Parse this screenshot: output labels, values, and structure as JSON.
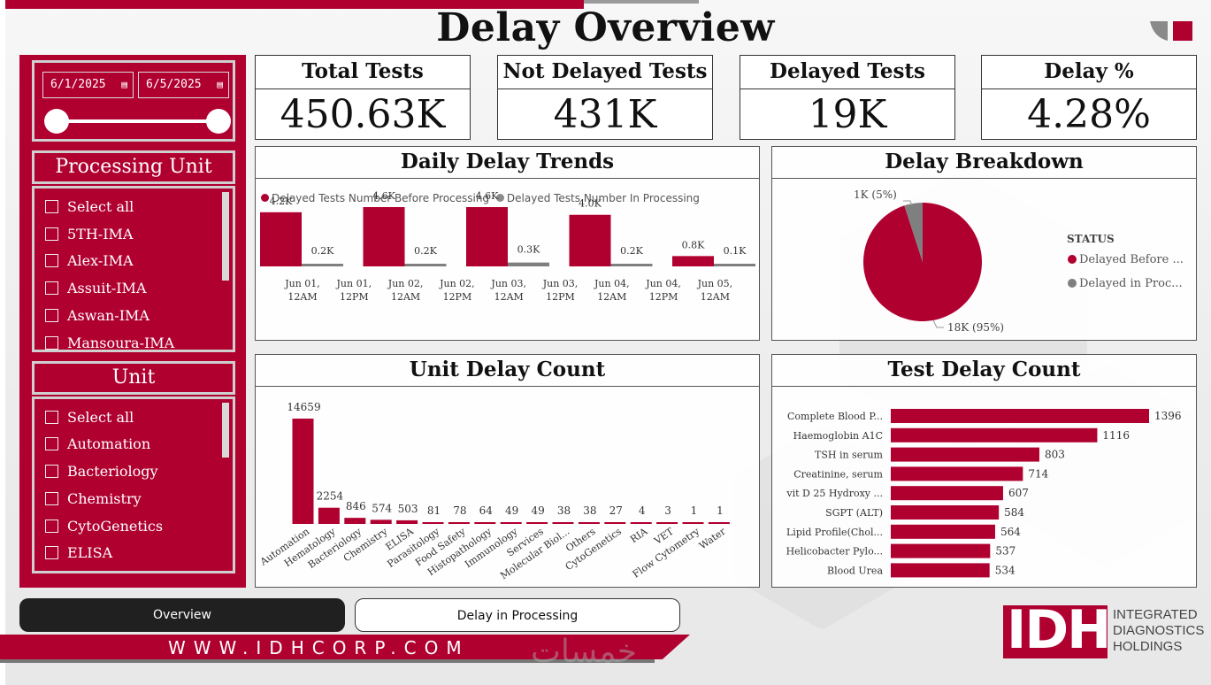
{
  "page": {
    "title": "Delay Overview"
  },
  "colors": {
    "brand": "#b00030",
    "gray": "#7f7f7f",
    "dark": "#202020"
  },
  "filters": {
    "date_start": "6/1/2025",
    "date_end": "6/5/2025",
    "processing_unit": {
      "title": "Processing Unit",
      "items": [
        "Select all",
        "5TH-IMA",
        "Alex-IMA",
        "Assuit-IMA",
        "Aswan-IMA",
        "Mansoura-IMA"
      ]
    },
    "unit": {
      "title": "Unit",
      "items": [
        "Select all",
        "Automation",
        "Bacteriology",
        "Chemistry",
        "CytoGenetics",
        "ELISA"
      ]
    }
  },
  "kpis": [
    {
      "label": "Total Tests",
      "value": "450.63K"
    },
    {
      "label": "Not Delayed Tests",
      "value": "431K"
    },
    {
      "label": "Delayed Tests",
      "value": "19K"
    },
    {
      "label": "Delay %",
      "value": "4.28%"
    }
  ],
  "panels": {
    "daily": "Daily Delay Trends",
    "breakdown": "Delay Breakdown",
    "unit": "Unit Delay Count",
    "test": "Test Delay Count"
  },
  "chart_data": [
    {
      "id": "daily",
      "type": "bar",
      "title": "Daily Delay Trends",
      "legend": [
        "Delayed Tests Number Before Processing",
        "Delayed Tests Number In Processing"
      ],
      "categories": [
        "Jun 01, 12AM",
        "Jun 01, 12PM",
        "Jun 02, 12AM",
        "Jun 02, 12PM",
        "Jun 03, 12AM",
        "Jun 03, 12PM",
        "Jun 04, 12AM",
        "Jun 04, 12PM",
        "Jun 05, 12AM"
      ],
      "groups": [
        {
          "before": 4.2,
          "before_label": "4.2K",
          "in": 0.2,
          "in_label": "0.2K"
        },
        {
          "before": 4.6,
          "before_label": "4.6K",
          "in": 0.2,
          "in_label": "0.2K"
        },
        {
          "before": 4.6,
          "before_label": "4.6K",
          "in": 0.3,
          "in_label": "0.3K"
        },
        {
          "before": 4.0,
          "before_label": "4.0K",
          "in": 0.2,
          "in_label": "0.2K"
        },
        {
          "before": 0.8,
          "before_label": "0.8K",
          "in": 0.1,
          "in_label": "0.1K"
        }
      ],
      "ylim": [
        0,
        4.6
      ]
    },
    {
      "id": "breakdown",
      "type": "pie",
      "title": "Delay Breakdown",
      "legend_title": "STATUS",
      "slices": [
        {
          "label": "Delayed Before ...",
          "value": 95,
          "data_label": "18K (95%)"
        },
        {
          "label": "Delayed in Proc...",
          "value": 5,
          "data_label": "1K (5%)"
        }
      ]
    },
    {
      "id": "unit",
      "type": "bar",
      "title": "Unit Delay Count",
      "categories": [
        "Automation",
        "Hematology",
        "Bacteriology",
        "Chemistry",
        "ELISA",
        "Parasitology",
        "Food Safety",
        "Histopathology",
        "Immunology",
        "Services",
        "Molecular Biol...",
        "Others",
        "CytoGenetics",
        "RIA",
        "VET",
        "Flow Cytometry",
        "Water"
      ],
      "values": [
        14659,
        2254,
        846,
        574,
        503,
        81,
        78,
        64,
        49,
        49,
        38,
        38,
        27,
        4,
        3,
        1,
        1
      ]
    },
    {
      "id": "test",
      "type": "bar",
      "orientation": "horizontal",
      "title": "Test Delay Count",
      "categories": [
        "Complete Blood P...",
        "Haemoglobin A1C",
        "TSH in serum",
        "Creatinine, serum",
        "vit D 25 Hydroxy ...",
        "SGPT (ALT)",
        "Lipid Profile(Chol...",
        "Helicobacter Pylo...",
        "Blood Urea"
      ],
      "values": [
        1396,
        1116,
        803,
        714,
        607,
        584,
        564,
        537,
        534
      ]
    }
  ],
  "nav": {
    "overview": "Overview",
    "delay_in_processing": "Delay in Processing"
  },
  "footer": {
    "website": "WWW.IDHCORP.COM",
    "logo_letters": "IDH",
    "logo_text": [
      "INTEGRATED",
      "DIAGNOSTICS",
      "HOLDINGS"
    ],
    "watermark": "خمسات"
  }
}
